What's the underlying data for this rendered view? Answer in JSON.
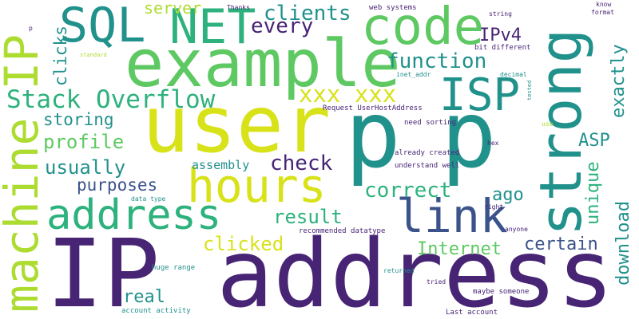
{
  "words": {
    "ip_address": "IP address",
    "user": "user",
    "p1": "p",
    "p2": "p",
    "strong": "strong",
    "example": "example",
    "machine_ip": "machine IP",
    "code": "code",
    "net": "NET",
    "sql": "SQL",
    "hours": "hours",
    "address": "address",
    "link": "link",
    "isp": "ISP",
    "stack_overflow": "Stack Overflow",
    "function": "function",
    "xxx": "xxx xxx",
    "every": "every",
    "clients": "clients",
    "server": "server",
    "ipv4": "IPv4",
    "clicks": "clicks",
    "exactly": "exactly",
    "storing": "storing",
    "profile": "profile",
    "usually": "usually",
    "check": "check",
    "purposes": "purposes",
    "assembly": "assembly",
    "correct": "correct",
    "ago": "ago",
    "asp": "ASP",
    "unique": "unique",
    "download": "download",
    "result": "result",
    "certain": "certain",
    "clicked": "clicked",
    "internet": "Internet",
    "real": "real",
    "thanks": "Thanks",
    "web_systems": "web systems",
    "string": "string",
    "know": "know",
    "format": "format",
    "p_small": "p",
    "standard": "standard",
    "bit_different": "bit different",
    "inet_addr": "inet_addr",
    "decimal": "decimal",
    "tested": "tested",
    "request": "Request UserHostAddress",
    "need_sorting": "need sorting",
    "use": "use",
    "hex": "hex",
    "already_created": "already created",
    "understand_well": "understand well",
    "data_type": "data type",
    "right": "right",
    "anyone": "anyone",
    "recommended_datatype": "recommended datatype",
    "huge_range": "huge range",
    "returned": "returned",
    "tried": "tried",
    "maybe_someone": "maybe someone",
    "account_activity": "account activity",
    "last_account": "Last account"
  },
  "palette": {
    "dark_purple": "#482475",
    "blue": "#3b528b",
    "teal": "#21918c",
    "green": "#2db27d",
    "light_green": "#5ec962",
    "yellow_green": "#addc30",
    "yellow": "#d8e219",
    "background": "#ffffff"
  }
}
